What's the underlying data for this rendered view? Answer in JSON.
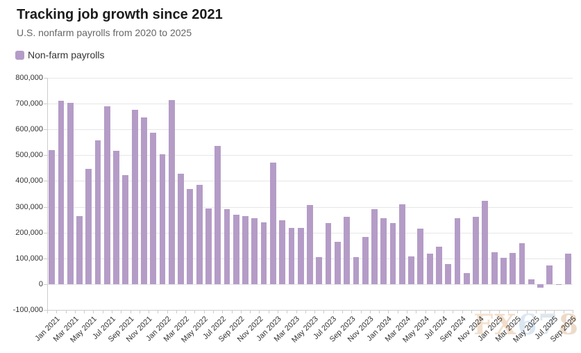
{
  "header": {
    "title": "Tracking job growth since 2021",
    "subtitle": "U.S. nonfarm payrolls from 2020 to 2025"
  },
  "legend": {
    "label": "Non-farm payrolls",
    "swatch_color": "#b49cc7"
  },
  "watermark": {
    "text": "FX678",
    "letters": [
      {
        "char": "F",
        "color": "#eac9a8"
      },
      {
        "char": "X",
        "color": "#e6c3a0"
      },
      {
        "char": "6",
        "color": "#bfd4ea"
      },
      {
        "char": "7",
        "color": "#c4d1e0"
      },
      {
        "char": "8",
        "color": "#dfbf9e"
      }
    ]
  },
  "chart_data": {
    "type": "bar",
    "title": "Tracking job growth since 2021",
    "subtitle": "U.S. nonfarm payrolls from 2020 to 2025",
    "series_name": "Non-farm payrolls",
    "bar_color": "#b49cc7",
    "xlabel": "",
    "ylabel": "",
    "ylim": [
      -100000,
      800000
    ],
    "ytick_interval": 100000,
    "ytick_labels": [
      "800,000",
      "700,000",
      "600,000",
      "500,000",
      "400,000",
      "300,000",
      "200,000",
      "100,000",
      "0",
      "-100,000"
    ],
    "grid": true,
    "legend_position": "top-left",
    "x_label_every": 2,
    "categories": [
      "Jan 2021",
      "Feb 2021",
      "Mar 2021",
      "Apr 2021",
      "May 2021",
      "Jun 2021",
      "Jul 2021",
      "Aug 2021",
      "Sep 2021",
      "Oct 2021",
      "Nov 2021",
      "Dec 2021",
      "Jan 2022",
      "Feb 2022",
      "Mar 2022",
      "Apr 2022",
      "May 2022",
      "Jun 2022",
      "Jul 2022",
      "Aug 2022",
      "Sep 2022",
      "Oct 2022",
      "Nov 2022",
      "Dec 2022",
      "Jan 2023",
      "Feb 2023",
      "Mar 2023",
      "Apr 2023",
      "May 2023",
      "Jun 2023",
      "Jul 2023",
      "Aug 2023",
      "Sep 2023",
      "Oct 2023",
      "Nov 2023",
      "Dec 2023",
      "Jan 2024",
      "Feb 2024",
      "Mar 2024",
      "Apr 2024",
      "May 2024",
      "Jun 2024",
      "Jul 2024",
      "Aug 2024",
      "Sep 2024",
      "Oct 2024",
      "Nov 2024",
      "Dec 2024",
      "Jan 2025",
      "Feb 2025",
      "Mar 2025",
      "Apr 2025",
      "May 2025",
      "Jun 2025",
      "Jul 2025",
      "Aug 2025",
      "Sep 2025"
    ],
    "values": [
      520000,
      710000,
      704000,
      263000,
      447000,
      557000,
      689000,
      517000,
      424000,
      677000,
      647000,
      588000,
      504000,
      714000,
      428000,
      368000,
      386000,
      293000,
      537000,
      292000,
      269000,
      263000,
      256000,
      239000,
      472000,
      248000,
      217000,
      217000,
      306000,
      105000,
      236000,
      165000,
      262000,
      105000,
      182000,
      290000,
      256000,
      236000,
      310000,
      108000,
      216000,
      118000,
      144000,
      78000,
      255000,
      43000,
      261000,
      323000,
      125000,
      102000,
      120000,
      158000,
      19000,
      -13000,
      72000,
      -4000,
      119000
    ]
  }
}
